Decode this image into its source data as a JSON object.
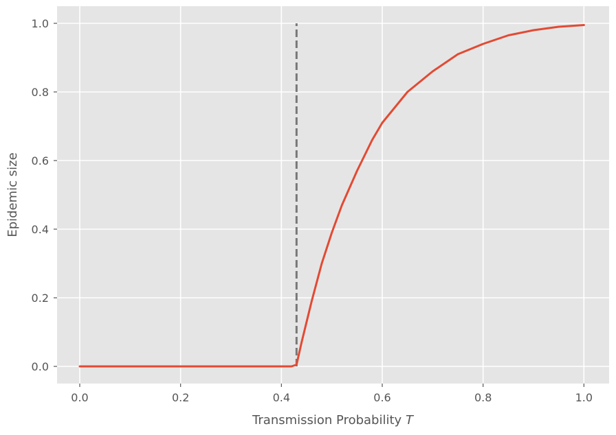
{
  "chart_data": {
    "type": "line",
    "title": "",
    "xlabel": "Transmission Probability",
    "xlabel_var": "T",
    "ylabel": "Epidemic size",
    "xlim": [
      -0.045,
      1.05
    ],
    "ylim": [
      -0.05,
      1.05
    ],
    "xticks": [
      0.0,
      0.2,
      0.4,
      0.6,
      0.8,
      1.0
    ],
    "xtick_labels": [
      "0.0",
      "0.2",
      "0.4",
      "0.6",
      "0.8",
      "1.0"
    ],
    "yticks": [
      0.0,
      0.2,
      0.4,
      0.6,
      0.8,
      1.0
    ],
    "ytick_labels": [
      "0.0",
      "0.2",
      "0.4",
      "0.6",
      "0.8",
      "1.0"
    ],
    "grid": true,
    "background": "#e5e5e5",
    "series": [
      {
        "color": "#e24a33",
        "style": "solid",
        "x": [
          0.0,
          0.1,
          0.2,
          0.3,
          0.35,
          0.4,
          0.42,
          0.43,
          0.44,
          0.46,
          0.48,
          0.5,
          0.52,
          0.55,
          0.58,
          0.6,
          0.65,
          0.7,
          0.75,
          0.8,
          0.85,
          0.9,
          0.95,
          1.0
        ],
        "y": [
          0.0,
          0.0,
          0.0,
          0.0,
          0.0,
          0.0,
          0.0,
          0.005,
          0.07,
          0.19,
          0.3,
          0.39,
          0.47,
          0.57,
          0.66,
          0.71,
          0.8,
          0.86,
          0.91,
          0.94,
          0.965,
          0.98,
          0.99,
          0.995
        ]
      }
    ],
    "reference_lines": [
      {
        "orientation": "vertical",
        "x": 0.43,
        "y_from": 0.0,
        "y_to": 1.0,
        "color": "#777777",
        "style": "dashed"
      }
    ]
  }
}
